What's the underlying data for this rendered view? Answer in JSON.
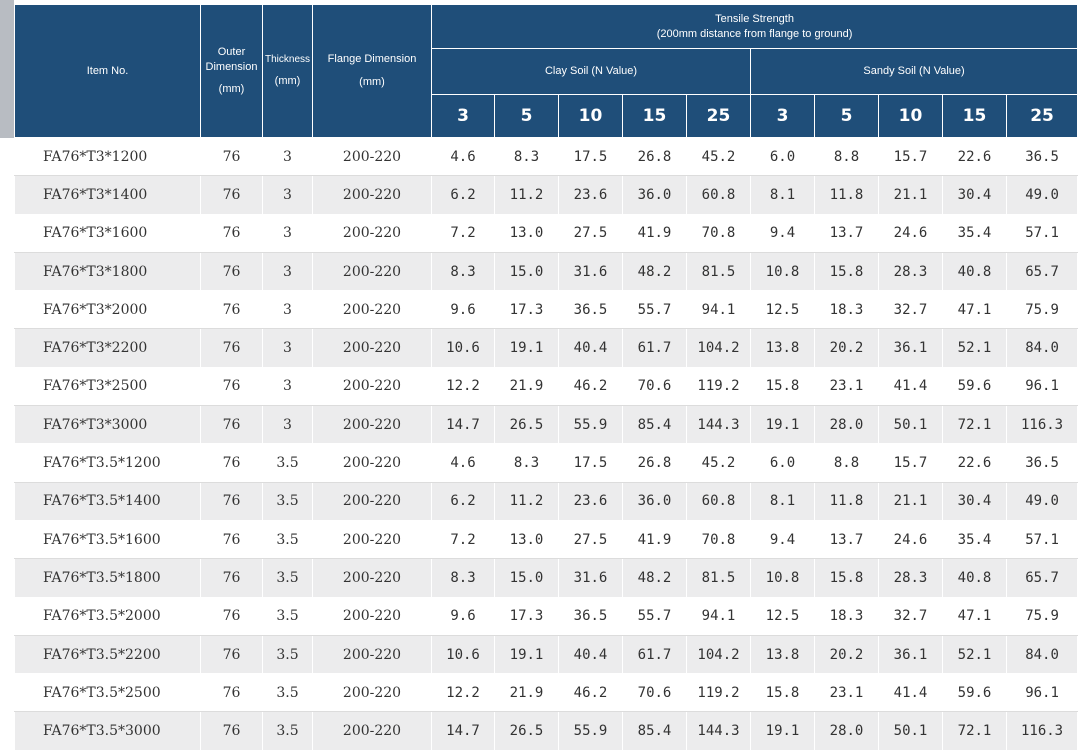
{
  "header": {
    "item_no": "Item No.",
    "outer_dimension": "Outer Dimension",
    "outer_unit": "(mm)",
    "thickness": "Thickness",
    "thickness_unit": "(mm)",
    "flange_dimension": "Flange Dimension",
    "flange_unit": "(mm)",
    "tensile_title": "Tensile Strength",
    "tensile_subtitle": "(200mm distance from flange to ground)",
    "clay_soil": "Clay Soil (N Value)",
    "sandy_soil": "Sandy Soil (N Value)",
    "n_values": [
      "3",
      "5",
      "10",
      "15",
      "25"
    ]
  },
  "rows": [
    {
      "item": "FA76*T3*1200",
      "od": "76",
      "t": "3",
      "flange": "200-220",
      "clay": [
        "4.6",
        "8.3",
        "17.5",
        "26.8",
        "45.2"
      ],
      "sandy": [
        "6.0",
        "8.8",
        "15.7",
        "22.6",
        "36.5"
      ]
    },
    {
      "item": "FA76*T3*1400",
      "od": "76",
      "t": "3",
      "flange": "200-220",
      "clay": [
        "6.2",
        "11.2",
        "23.6",
        "36.0",
        "60.8"
      ],
      "sandy": [
        "8.1",
        "11.8",
        "21.1",
        "30.4",
        "49.0"
      ]
    },
    {
      "item": "FA76*T3*1600",
      "od": "76",
      "t": "3",
      "flange": "200-220",
      "clay": [
        "7.2",
        "13.0",
        "27.5",
        "41.9",
        "70.8"
      ],
      "sandy": [
        "9.4",
        "13.7",
        "24.6",
        "35.4",
        "57.1"
      ]
    },
    {
      "item": "FA76*T3*1800",
      "od": "76",
      "t": "3",
      "flange": "200-220",
      "clay": [
        "8.3",
        "15.0",
        "31.6",
        "48.2",
        "81.5"
      ],
      "sandy": [
        "10.8",
        "15.8",
        "28.3",
        "40.8",
        "65.7"
      ]
    },
    {
      "item": "FA76*T3*2000",
      "od": "76",
      "t": "3",
      "flange": "200-220",
      "clay": [
        "9.6",
        "17.3",
        "36.5",
        "55.7",
        "94.1"
      ],
      "sandy": [
        "12.5",
        "18.3",
        "32.7",
        "47.1",
        "75.9"
      ]
    },
    {
      "item": "FA76*T3*2200",
      "od": "76",
      "t": "3",
      "flange": "200-220",
      "clay": [
        "10.6",
        "19.1",
        "40.4",
        "61.7",
        "104.2"
      ],
      "sandy": [
        "13.8",
        "20.2",
        "36.1",
        "52.1",
        "84.0"
      ]
    },
    {
      "item": "FA76*T3*2500",
      "od": "76",
      "t": "3",
      "flange": "200-220",
      "clay": [
        "12.2",
        "21.9",
        "46.2",
        "70.6",
        "119.2"
      ],
      "sandy": [
        "15.8",
        "23.1",
        "41.4",
        "59.6",
        "96.1"
      ]
    },
    {
      "item": "FA76*T3*3000",
      "od": "76",
      "t": "3",
      "flange": "200-220",
      "clay": [
        "14.7",
        "26.5",
        "55.9",
        "85.4",
        "144.3"
      ],
      "sandy": [
        "19.1",
        "28.0",
        "50.1",
        "72.1",
        "116.3"
      ]
    },
    {
      "item": "FA76*T3.5*1200",
      "od": "76",
      "t": "3.5",
      "flange": "200-220",
      "clay": [
        "4.6",
        "8.3",
        "17.5",
        "26.8",
        "45.2"
      ],
      "sandy": [
        "6.0",
        "8.8",
        "15.7",
        "22.6",
        "36.5"
      ]
    },
    {
      "item": "FA76*T3.5*1400",
      "od": "76",
      "t": "3.5",
      "flange": "200-220",
      "clay": [
        "6.2",
        "11.2",
        "23.6",
        "36.0",
        "60.8"
      ],
      "sandy": [
        "8.1",
        "11.8",
        "21.1",
        "30.4",
        "49.0"
      ]
    },
    {
      "item": "FA76*T3.5*1600",
      "od": "76",
      "t": "3.5",
      "flange": "200-220",
      "clay": [
        "7.2",
        "13.0",
        "27.5",
        "41.9",
        "70.8"
      ],
      "sandy": [
        "9.4",
        "13.7",
        "24.6",
        "35.4",
        "57.1"
      ]
    },
    {
      "item": "FA76*T3.5*1800",
      "od": "76",
      "t": "3.5",
      "flange": "200-220",
      "clay": [
        "8.3",
        "15.0",
        "31.6",
        "48.2",
        "81.5"
      ],
      "sandy": [
        "10.8",
        "15.8",
        "28.3",
        "40.8",
        "65.7"
      ]
    },
    {
      "item": "FA76*T3.5*2000",
      "od": "76",
      "t": "3.5",
      "flange": "200-220",
      "clay": [
        "9.6",
        "17.3",
        "36.5",
        "55.7",
        "94.1"
      ],
      "sandy": [
        "12.5",
        "18.3",
        "32.7",
        "47.1",
        "75.9"
      ]
    },
    {
      "item": "FA76*T3.5*2200",
      "od": "76",
      "t": "3.5",
      "flange": "200-220",
      "clay": [
        "10.6",
        "19.1",
        "40.4",
        "61.7",
        "104.2"
      ],
      "sandy": [
        "13.8",
        "20.2",
        "36.1",
        "52.1",
        "84.0"
      ]
    },
    {
      "item": "FA76*T3.5*2500",
      "od": "76",
      "t": "3.5",
      "flange": "200-220",
      "clay": [
        "12.2",
        "21.9",
        "46.2",
        "70.6",
        "119.2"
      ],
      "sandy": [
        "15.8",
        "23.1",
        "41.4",
        "59.6",
        "96.1"
      ]
    },
    {
      "item": "FA76*T3.5*3000",
      "od": "76",
      "t": "3.5",
      "flange": "200-220",
      "clay": [
        "14.7",
        "26.5",
        "55.9",
        "85.4",
        "144.3"
      ],
      "sandy": [
        "19.1",
        "28.0",
        "50.1",
        "72.1",
        "116.3"
      ]
    }
  ]
}
